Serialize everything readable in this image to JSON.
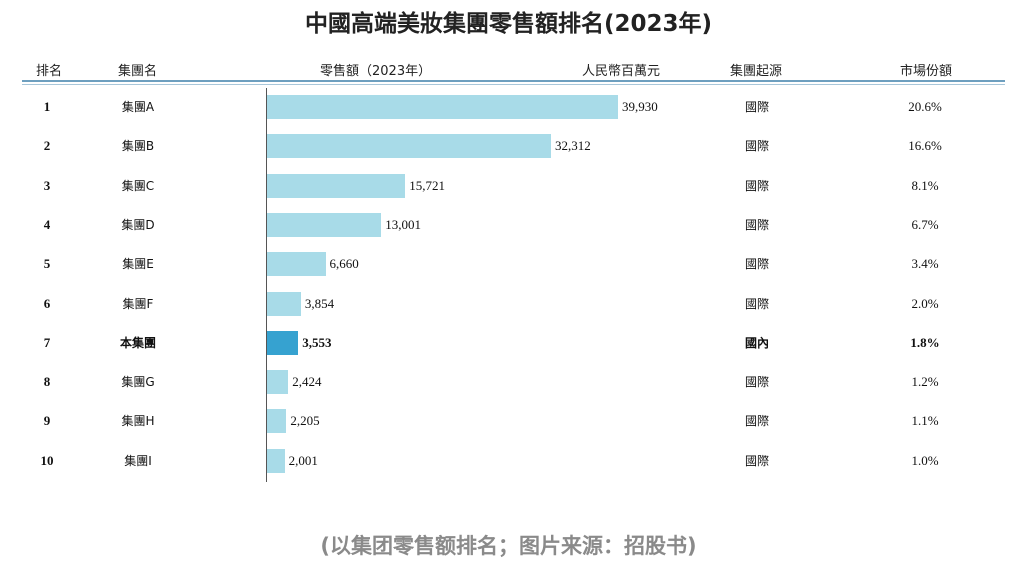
{
  "chart_data": {
    "type": "bar",
    "orientation": "horizontal",
    "title": "中國高端美妝集團零售額排名(2023年)",
    "columns": {
      "rank": "排名",
      "name": "集團名",
      "value": "零售額（2023年）",
      "unit": "人民幣百萬元",
      "origin": "集團起源",
      "share": "市場份額"
    },
    "rows": [
      {
        "rank": "1",
        "name": "集團A",
        "value": 39930,
        "label": "39,930",
        "origin": "國際",
        "share": "20.6%"
      },
      {
        "rank": "2",
        "name": "集團B",
        "value": 32312,
        "label": "32,312",
        "origin": "國際",
        "share": "16.6%"
      },
      {
        "rank": "3",
        "name": "集團C",
        "value": 15721,
        "label": "15,721",
        "origin": "國際",
        "share": "8.1%"
      },
      {
        "rank": "4",
        "name": "集團D",
        "value": 13001,
        "label": "13,001",
        "origin": "國際",
        "share": "6.7%"
      },
      {
        "rank": "5",
        "name": "集團E",
        "value": 6660,
        "label": "6,660",
        "origin": "國際",
        "share": "3.4%"
      },
      {
        "rank": "6",
        "name": "集團F",
        "value": 3854,
        "label": "3,854",
        "origin": "國際",
        "share": "2.0%"
      },
      {
        "rank": "7",
        "name": "本集團",
        "value": 3553,
        "label": "3,553",
        "origin": "國內",
        "share": "1.8%",
        "highlight": true
      },
      {
        "rank": "8",
        "name": "集團G",
        "value": 2424,
        "label": "2,424",
        "origin": "國際",
        "share": "1.2%"
      },
      {
        "rank": "9",
        "name": "集團H",
        "value": 2205,
        "label": "2,205",
        "origin": "國際",
        "share": "1.1%"
      },
      {
        "rank": "10",
        "name": "集團I",
        "value": 2001,
        "label": "2,001",
        "origin": "國際",
        "share": "1.0%"
      }
    ],
    "colors": {
      "bar": "#a8dbe8",
      "highlight": "#36a2d0"
    }
  },
  "footnote": "(以集团零售额排名；图片来源：招股书)"
}
